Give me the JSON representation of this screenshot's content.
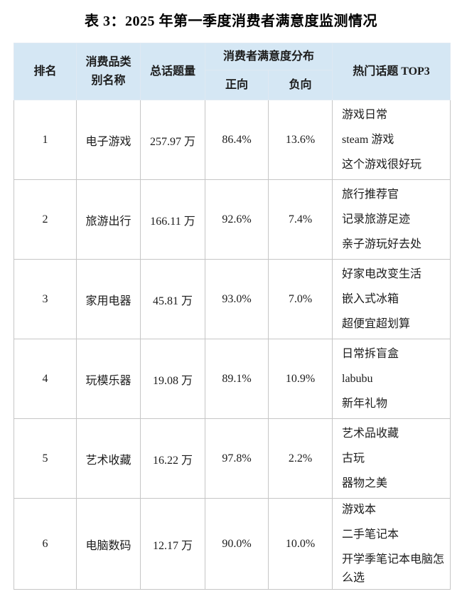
{
  "title": "表 3：2025 年第一季度消费者满意度监测情况",
  "colors": {
    "header_bg": "#d5e7f4",
    "border_inner": "#c6c6c6",
    "border_header": "#dfe9f2",
    "border_outer": "#a3a3a3",
    "text": "#1c1c1c"
  },
  "table": {
    "headers": {
      "rank": "排名",
      "category_line1": "消费品类",
      "category_line2": "别名称",
      "total_topics": "总话题量",
      "satisfaction_group": "消费者满意度分布",
      "positive": "正向",
      "negative": "负向",
      "hot_topics": "热门话题 TOP3"
    },
    "rows": [
      {
        "rank": "1",
        "category": "电子游戏",
        "total": "257.97 万",
        "positive": "86.4%",
        "negative": "13.6%",
        "topics": [
          "游戏日常",
          "steam 游戏",
          "这个游戏很好玩"
        ]
      },
      {
        "rank": "2",
        "category": "旅游出行",
        "total": "166.11 万",
        "positive": "92.6%",
        "negative": "7.4%",
        "topics": [
          "旅行推荐官",
          "记录旅游足迹",
          "亲子游玩好去处"
        ]
      },
      {
        "rank": "3",
        "category": "家用电器",
        "total": "45.81 万",
        "positive": "93.0%",
        "negative": "7.0%",
        "topics": [
          "好家电改变生活",
          "嵌入式冰箱",
          "超便宜超划算"
        ]
      },
      {
        "rank": "4",
        "category": "玩模乐器",
        "total": "19.08 万",
        "positive": "89.1%",
        "negative": "10.9%",
        "topics": [
          "日常拆盲盒",
          "labubu",
          "新年礼物"
        ]
      },
      {
        "rank": "5",
        "category": "艺术收藏",
        "total": "16.22 万",
        "positive": "97.8%",
        "negative": "2.2%",
        "topics": [
          "艺术品收藏",
          "古玩",
          "器物之美"
        ]
      },
      {
        "rank": "6",
        "category": "电脑数码",
        "total": "12.17 万",
        "positive": "90.0%",
        "negative": "10.0%",
        "topics": [
          "游戏本",
          "二手笔记本",
          "开学季笔记本电脑怎么选"
        ]
      }
    ]
  },
  "chart_data": {
    "type": "table",
    "title": "表 3：2025 年第一季度消费者满意度监测情况",
    "columns": [
      "排名",
      "消费品类别名称",
      "总话题量",
      "消费者满意度分布-正向",
      "消费者满意度分布-负向",
      "热门话题 TOP3"
    ],
    "rows": [
      [
        "1",
        "电子游戏",
        "257.97 万",
        "86.4%",
        "13.6%",
        "游戏日常；steam 游戏；这个游戏很好玩"
      ],
      [
        "2",
        "旅游出行",
        "166.11 万",
        "92.6%",
        "7.4%",
        "旅行推荐官；记录旅游足迹；亲子游玩好去处"
      ],
      [
        "3",
        "家用电器",
        "45.81 万",
        "93.0%",
        "7.0%",
        "好家电改变生活；嵌入式冰箱；超便宜超划算"
      ],
      [
        "4",
        "玩模乐器",
        "19.08 万",
        "89.1%",
        "10.9%",
        "日常拆盲盒；labubu；新年礼物"
      ],
      [
        "5",
        "艺术收藏",
        "16.22 万",
        "97.8%",
        "2.2%",
        "艺术品收藏；古玩；器物之美"
      ],
      [
        "6",
        "电脑数码",
        "12.17 万",
        "90.0%",
        "10.0%",
        "游戏本；二手笔记本；开学季笔记本电脑怎么选"
      ]
    ],
    "numeric": {
      "categories": [
        "电子游戏",
        "旅游出行",
        "家用电器",
        "玩模乐器",
        "艺术收藏",
        "电脑数码"
      ],
      "total_topics_wan": [
        257.97,
        166.11,
        45.81,
        19.08,
        16.22,
        12.17
      ],
      "positive_pct": [
        86.4,
        92.6,
        93.0,
        89.1,
        97.8,
        90.0
      ],
      "negative_pct": [
        13.6,
        7.4,
        7.0,
        10.9,
        2.2,
        10.0
      ]
    }
  }
}
